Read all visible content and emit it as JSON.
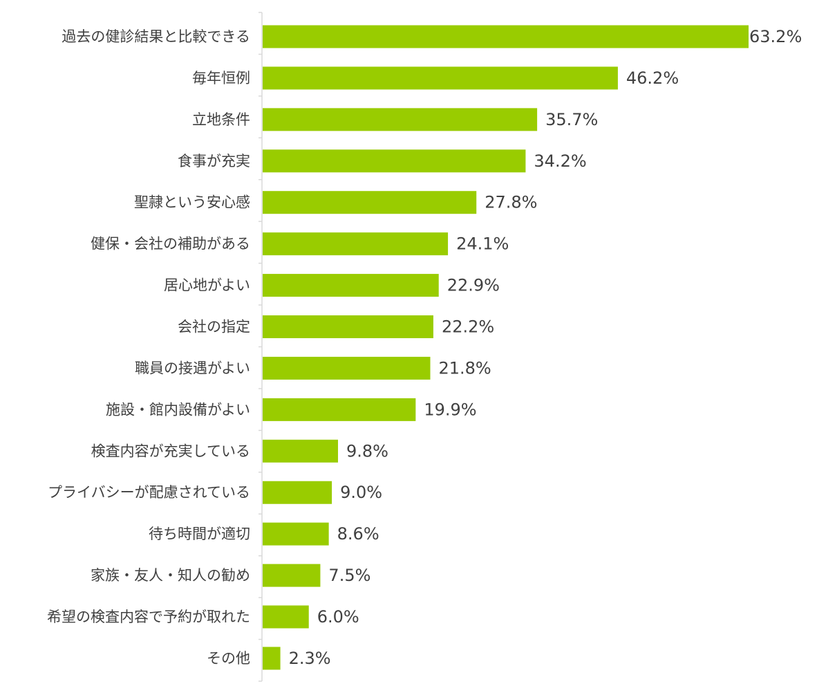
{
  "chart_data": {
    "type": "bar",
    "orientation": "horizontal",
    "categories": [
      "過去の健診結果と比較できる",
      "毎年恒例",
      "立地条件",
      "食事が充実",
      "聖隷という安心感",
      "健保・会社の補助がある",
      "居心地がよい",
      "会社の指定",
      "職員の接遇がよい",
      "施設・館内設備がよい",
      "検査内容が充実している",
      "プライバシーが配慮されている",
      "待ち時間が適切",
      "家族・友人・知人の勧め",
      "希望の検査内容で予約が取れた",
      "その他"
    ],
    "values": [
      63.2,
      46.2,
      35.7,
      34.2,
      27.8,
      24.1,
      22.9,
      22.2,
      21.8,
      19.9,
      9.8,
      9.0,
      8.6,
      7.5,
      6.0,
      2.3
    ],
    "value_labels": [
      "63.2%",
      "46.2%",
      "35.7%",
      "34.2%",
      "27.8%",
      "24.1%",
      "22.9%",
      "22.2%",
      "21.8%",
      "19.9%",
      "9.8%",
      "9.0%",
      "8.6%",
      "7.5%",
      "6.0%",
      "2.3%"
    ],
    "unit": "%",
    "xlim": [
      0,
      63.2
    ],
    "grid": false,
    "legend": "none",
    "bar_color": "#99cc00",
    "axis_color": "#d9d9d9",
    "text_color": "#404040"
  }
}
